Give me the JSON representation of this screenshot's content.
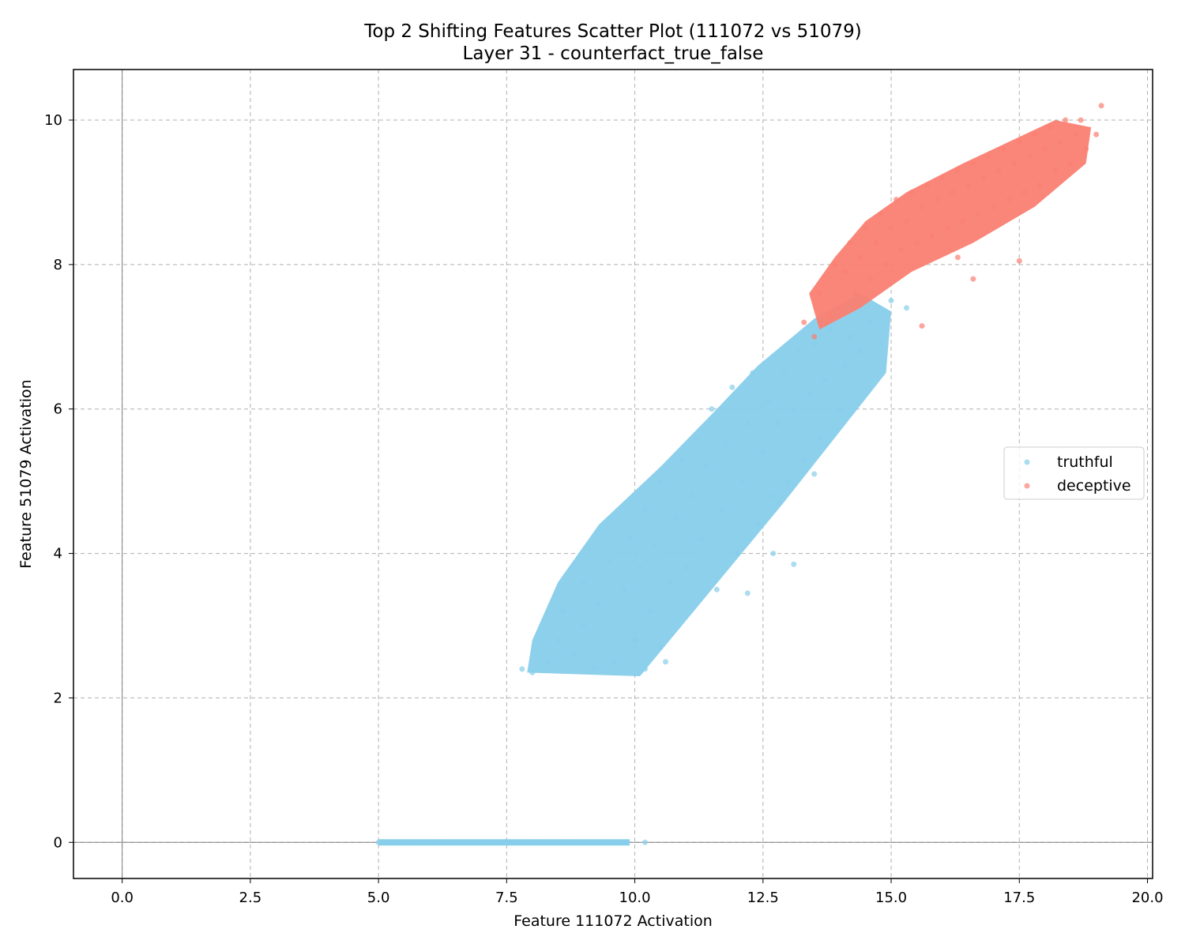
{
  "chart_data": {
    "type": "scatter",
    "title": "Top 2 Shifting Features Scatter Plot (111072 vs 51079)",
    "subtitle": "Layer 31 - counterfact_true_false",
    "xlabel": "Feature 111072 Activation",
    "ylabel": "Feature 51079 Activation",
    "xlim": [
      -0.95,
      20.1
    ],
    "ylim": [
      -0.5,
      10.7
    ],
    "xticks": [
      0.0,
      2.5,
      5.0,
      7.5,
      10.0,
      12.5,
      15.0,
      17.5,
      20.0
    ],
    "xtick_labels": [
      "0.0",
      "2.5",
      "5.0",
      "7.5",
      "10.0",
      "12.5",
      "15.0",
      "17.5",
      "20.0"
    ],
    "yticks": [
      0,
      2,
      4,
      6,
      8,
      10
    ],
    "ytick_labels": [
      "0",
      "2",
      "4",
      "6",
      "8",
      "10"
    ],
    "grid": true,
    "grid_style": "dashed",
    "zero_lines": true,
    "legend_position": "center-right",
    "series": [
      {
        "name": "truthful",
        "color": "#87CEEB",
        "points": [
          [
            5.0,
            0
          ],
          [
            5.4,
            0
          ],
          [
            5.8,
            0
          ],
          [
            6.2,
            0
          ],
          [
            6.6,
            0
          ],
          [
            7.0,
            0
          ],
          [
            7.4,
            0
          ],
          [
            7.8,
            0
          ],
          [
            8.2,
            0
          ],
          [
            8.6,
            0
          ],
          [
            9.0,
            0
          ],
          [
            9.4,
            0
          ],
          [
            9.8,
            0
          ],
          [
            10.2,
            0
          ],
          [
            7.8,
            2.4
          ],
          [
            8.0,
            2.35
          ],
          [
            8.3,
            2.5
          ],
          [
            8.5,
            2.8
          ],
          [
            8.6,
            3.2
          ],
          [
            8.8,
            2.6
          ],
          [
            9.0,
            3.0
          ],
          [
            9.0,
            3.6
          ],
          [
            9.2,
            2.4
          ],
          [
            9.3,
            3.3
          ],
          [
            9.5,
            3.9
          ],
          [
            9.6,
            2.5
          ],
          [
            9.8,
            3.5
          ],
          [
            9.9,
            4.2
          ],
          [
            10.0,
            2.8
          ],
          [
            10.1,
            3.8
          ],
          [
            10.2,
            4.6
          ],
          [
            10.3,
            3.2
          ],
          [
            10.4,
            4.1
          ],
          [
            10.5,
            5.0
          ],
          [
            10.6,
            2.5
          ],
          [
            10.7,
            3.6
          ],
          [
            10.8,
            4.5
          ],
          [
            10.9,
            5.3
          ],
          [
            11.0,
            3.8
          ],
          [
            11.1,
            4.8
          ],
          [
            11.2,
            5.6
          ],
          [
            11.3,
            4.2
          ],
          [
            11.4,
            5.2
          ],
          [
            11.5,
            6.0
          ],
          [
            11.6,
            3.5
          ],
          [
            11.7,
            4.6
          ],
          [
            11.8,
            5.5
          ],
          [
            11.9,
            6.3
          ],
          [
            12.0,
            4.0
          ],
          [
            12.1,
            5.0
          ],
          [
            12.2,
            5.8
          ],
          [
            12.3,
            6.5
          ],
          [
            12.4,
            4.4
          ],
          [
            12.5,
            5.4
          ],
          [
            12.6,
            6.1
          ],
          [
            12.7,
            4.8
          ],
          [
            12.8,
            5.8
          ],
          [
            12.9,
            6.5
          ],
          [
            13.0,
            5.0
          ],
          [
            13.1,
            6.0
          ],
          [
            13.2,
            6.8
          ],
          [
            13.3,
            5.3
          ],
          [
            13.4,
            6.2
          ],
          [
            13.5,
            6.9
          ],
          [
            13.6,
            5.6
          ],
          [
            13.7,
            6.4
          ],
          [
            13.8,
            7.1
          ],
          [
            14.0,
            6.0
          ],
          [
            14.1,
            6.6
          ],
          [
            14.2,
            7.0
          ],
          [
            14.4,
            6.8
          ],
          [
            14.6,
            7.2
          ],
          [
            14.8,
            6.9
          ],
          [
            15.0,
            7.5
          ],
          [
            15.3,
            7.4
          ],
          [
            13.1,
            3.85
          ],
          [
            12.7,
            4.0
          ],
          [
            12.2,
            3.45
          ],
          [
            12.8,
            4.7
          ],
          [
            13.5,
            5.1
          ],
          [
            10.2,
            2.4
          ],
          [
            10.5,
            2.7
          ]
        ]
      },
      {
        "name": "deceptive",
        "color": "#FA8072",
        "points": [
          [
            13.3,
            7.2
          ],
          [
            13.5,
            7.0
          ],
          [
            13.6,
            7.6
          ],
          [
            13.8,
            7.3
          ],
          [
            13.9,
            8.0
          ],
          [
            14.0,
            7.4
          ],
          [
            14.1,
            7.9
          ],
          [
            14.2,
            8.3
          ],
          [
            14.3,
            7.6
          ],
          [
            14.4,
            8.1
          ],
          [
            14.5,
            8.5
          ],
          [
            14.6,
            7.8
          ],
          [
            14.7,
            8.3
          ],
          [
            14.8,
            8.7
          ],
          [
            14.9,
            8.0
          ],
          [
            15.0,
            8.5
          ],
          [
            15.1,
            8.9
          ],
          [
            15.2,
            8.2
          ],
          [
            15.3,
            8.6
          ],
          [
            15.4,
            9.0
          ],
          [
            15.5,
            8.3
          ],
          [
            15.6,
            8.8
          ],
          [
            15.7,
            9.1
          ],
          [
            15.8,
            8.4
          ],
          [
            15.9,
            8.9
          ],
          [
            16.0,
            9.2
          ],
          [
            16.1,
            8.5
          ],
          [
            16.2,
            9.0
          ],
          [
            16.3,
            9.3
          ],
          [
            16.4,
            8.6
          ],
          [
            16.5,
            9.1
          ],
          [
            16.6,
            9.4
          ],
          [
            16.7,
            8.7
          ],
          [
            16.8,
            9.2
          ],
          [
            16.9,
            9.5
          ],
          [
            17.0,
            8.8
          ],
          [
            17.1,
            9.3
          ],
          [
            17.2,
            9.6
          ],
          [
            17.3,
            8.9
          ],
          [
            17.4,
            9.4
          ],
          [
            17.5,
            9.7
          ],
          [
            17.6,
            9.0
          ],
          [
            17.7,
            9.5
          ],
          [
            17.8,
            9.8
          ],
          [
            17.9,
            9.1
          ],
          [
            18.0,
            9.6
          ],
          [
            18.1,
            9.9
          ],
          [
            18.2,
            9.3
          ],
          [
            18.3,
            9.7
          ],
          [
            18.4,
            10.0
          ],
          [
            18.5,
            9.4
          ],
          [
            18.6,
            9.8
          ],
          [
            18.7,
            10.0
          ],
          [
            18.8,
            9.6
          ],
          [
            19.0,
            9.8
          ],
          [
            19.1,
            10.2
          ],
          [
            15.6,
            7.15
          ],
          [
            16.6,
            7.8
          ],
          [
            17.5,
            8.05
          ],
          [
            16.3,
            8.1
          ]
        ]
      }
    ]
  }
}
